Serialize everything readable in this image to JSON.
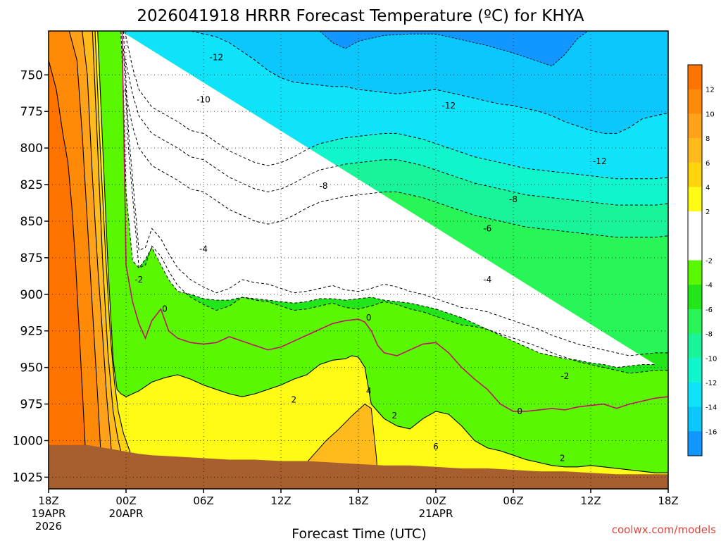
{
  "chart_data": {
    "type": "heatmap",
    "title": "2026041918 HRRR Forecast Temperature (ºC) for KHYA",
    "xlabel": "Forecast Time (UTC)",
    "ylabel": "",
    "y_axis": {
      "label": "",
      "range": [
        1033,
        720
      ],
      "ticks": [
        750,
        775,
        800,
        825,
        850,
        875,
        900,
        925,
        950,
        975,
        1000,
        1025
      ]
    },
    "x_axis": {
      "range_hours": [
        0,
        48
      ],
      "ticks": [
        {
          "hour": 0,
          "label": "18Z",
          "date": "19APR",
          "year": "2026"
        },
        {
          "hour": 6,
          "label": "00Z",
          "date": "20APR"
        },
        {
          "hour": 12,
          "label": "06Z"
        },
        {
          "hour": 18,
          "label": "12Z"
        },
        {
          "hour": 24,
          "label": "18Z"
        },
        {
          "hour": 30,
          "label": "00Z",
          "date": "21APR"
        },
        {
          "hour": 36,
          "label": "06Z"
        },
        {
          "hour": 42,
          "label": "12Z"
        },
        {
          "hour": 48,
          "label": "18Z"
        }
      ]
    },
    "grid": true,
    "colorbar": {
      "placement": "right",
      "levels": [
        {
          "value": "12",
          "color": "#ff7400"
        },
        {
          "value": "10",
          "color": "#ff8a08"
        },
        {
          "value": "8",
          "color": "#ffa21a"
        },
        {
          "value": "6",
          "color": "#ffba1c"
        },
        {
          "value": "4",
          "color": "#ffd40c"
        },
        {
          "value": "2",
          "color": "#fffb14"
        },
        {
          "value": "",
          "color": "#ffffff"
        },
        {
          "value": "-2",
          "color": "#ffffff"
        },
        {
          "value": "-4",
          "color": "#5af800"
        },
        {
          "value": "-6",
          "color": "#22e619"
        },
        {
          "value": "-8",
          "color": "#27f558"
        },
        {
          "value": "-10",
          "color": "#19f49a"
        },
        {
          "value": "-12",
          "color": "#11f5cc"
        },
        {
          "value": "-14",
          "color": "#0fe3fa"
        },
        {
          "value": "-16",
          "color": "#0bc7fb"
        },
        {
          "value": "",
          "color": "#1296ff"
        }
      ]
    },
    "contour_labels": [
      {
        "text": "-12",
        "hour": 13.0,
        "p": 738
      },
      {
        "text": "-10",
        "hour": 12.0,
        "p": 767
      },
      {
        "text": "-12",
        "hour": 31.0,
        "p": 771
      },
      {
        "text": "-12",
        "hour": 42.7,
        "p": 809
      },
      {
        "text": "-8",
        "hour": 21.3,
        "p": 826
      },
      {
        "text": "-8",
        "hour": 36.0,
        "p": 835
      },
      {
        "text": "-6",
        "hour": 34.0,
        "p": 855
      },
      {
        "text": "-4",
        "hour": 12.0,
        "p": 869
      },
      {
        "text": "-4",
        "hour": 34.0,
        "p": 890
      },
      {
        "text": "-2",
        "hour": 7.0,
        "p": 890
      },
      {
        "text": "0",
        "hour": 9.0,
        "p": 910
      },
      {
        "text": "0",
        "hour": 24.8,
        "p": 916
      },
      {
        "text": "-2",
        "hour": 40.0,
        "p": 956
      },
      {
        "text": "0",
        "hour": 36.5,
        "p": 980
      },
      {
        "text": "2",
        "hour": 19.0,
        "p": 972
      },
      {
        "text": "4",
        "hour": 24.8,
        "p": 966
      },
      {
        "text": "2",
        "hour": 26.8,
        "p": 983
      },
      {
        "text": "2",
        "hour": 39.8,
        "p": 1012
      },
      {
        "text": "6",
        "hour": 30.0,
        "p": 1004
      }
    ],
    "fields": {
      "cold_top": {
        "color": "#1296ff",
        "hours": [
          21,
          22,
          23,
          24,
          26,
          28,
          30,
          32,
          34,
          36,
          38,
          39,
          40,
          41,
          41.8
        ],
        "p": [
          720,
          728,
          732,
          727,
          723,
          722,
          722,
          726,
          730,
          735,
          741,
          744,
          736,
          725,
          720
        ]
      },
      "le_m14_x": [
        6.1,
        7,
        8,
        9,
        10,
        11,
        12,
        13,
        14,
        15,
        16,
        17,
        18,
        19,
        20,
        21,
        22,
        23,
        24,
        25,
        26,
        27,
        28,
        29,
        30,
        31,
        32,
        33,
        34,
        35,
        36,
        37,
        38,
        39,
        40,
        41,
        42,
        43,
        44,
        45,
        46,
        47,
        48
      ],
      "le_m14_p": [
        720,
        720,
        720,
        720,
        720,
        720,
        722,
        724,
        728,
        734,
        740,
        747,
        752,
        755,
        756,
        757,
        758,
        758,
        760,
        761,
        762,
        763,
        762,
        761,
        760,
        762,
        764,
        766,
        768,
        770,
        771,
        773,
        775,
        778,
        782,
        785,
        788,
        790,
        790,
        786,
        780,
        778,
        776
      ],
      "le_m10_x": [
        5.9,
        6.5,
        7,
        8,
        9,
        10,
        11,
        12,
        13,
        14,
        15,
        16,
        17,
        18,
        19,
        20,
        21,
        22,
        23,
        24,
        25,
        26,
        27,
        28,
        29,
        30,
        31,
        32,
        33,
        34,
        35,
        36,
        37,
        38,
        39,
        40,
        41,
        42,
        43,
        44,
        45,
        46,
        47,
        48
      ],
      "le_m10_p": [
        720,
        745,
        760,
        772,
        777,
        782,
        788,
        790,
        796,
        802,
        806,
        810,
        812,
        810,
        806,
        801,
        797,
        795,
        793,
        792,
        791,
        790,
        790,
        792,
        794,
        797,
        800,
        803,
        806,
        808,
        810,
        812,
        814,
        815,
        816,
        817,
        818,
        819,
        820,
        821,
        821,
        821,
        821,
        820
      ],
      "le_m4_x": [
        5.8,
        6.2,
        6.6,
        7,
        7.5,
        8,
        8.7,
        9.3,
        10,
        11,
        12,
        13,
        14,
        15,
        16,
        17,
        18,
        19,
        20,
        21,
        22,
        23,
        24,
        25,
        26,
        27,
        28,
        29,
        30,
        31,
        32,
        33,
        34,
        35,
        36,
        37,
        38,
        39,
        40,
        41,
        42,
        43,
        44,
        45,
        46,
        47,
        48
      ],
      "le_m4_p": [
        720,
        790,
        830,
        870,
        868,
        855,
        862,
        872,
        882,
        890,
        895,
        899,
        896,
        890,
        892,
        893,
        896,
        899,
        898,
        896,
        894,
        897,
        898,
        896,
        893,
        895,
        898,
        900,
        903,
        906,
        909,
        910,
        912,
        915,
        918,
        921,
        924,
        928,
        931,
        934,
        936,
        938,
        940,
        942,
        941,
        940,
        940
      ],
      "le_m2_x": [
        5.6,
        5.8,
        6,
        6.5,
        7,
        7.5,
        8,
        8.7,
        9.3,
        10,
        11,
        12,
        13,
        14,
        15,
        16,
        17,
        18,
        19,
        20,
        21,
        22,
        23,
        24,
        25,
        26,
        27,
        28,
        29,
        30,
        31,
        32,
        33,
        34,
        35,
        36,
        37,
        38,
        39,
        40,
        41,
        42,
        43,
        44,
        45,
        46,
        47,
        48
      ],
      "le_m2_p": [
        720,
        760,
        830,
        877,
        882,
        876,
        868,
        880,
        890,
        898,
        900,
        903,
        904,
        904,
        902,
        903,
        904,
        905,
        906,
        905,
        903,
        903,
        904,
        903,
        902,
        904,
        905,
        906,
        908,
        910,
        913,
        916,
        920,
        924,
        928,
        932,
        936,
        940,
        942,
        944,
        945,
        947,
        948,
        950,
        949,
        948,
        948
      ],
      "ge_2_x": [
        0,
        1,
        2,
        3,
        3.8,
        4.2,
        4.6,
        5,
        5.3,
        5.6,
        6,
        6.5,
        7,
        8,
        9,
        10,
        11,
        12,
        13,
        14,
        15,
        16,
        17,
        18,
        19,
        20,
        21,
        22,
        23,
        23.5,
        24,
        24.5,
        25,
        26,
        27,
        28,
        29,
        30,
        31,
        32,
        33,
        34,
        35,
        36,
        37,
        38,
        39,
        40,
        41,
        42,
        43,
        44,
        45,
        46,
        47,
        48
      ],
      "ge_2_p": [
        720,
        720,
        720,
        720,
        720,
        800,
        880,
        945,
        965,
        968,
        970,
        968,
        966,
        960,
        957,
        955,
        958,
        962,
        965,
        968,
        970,
        968,
        965,
        962,
        958,
        955,
        948,
        945,
        944,
        942,
        943,
        950,
        975,
        985,
        990,
        992,
        985,
        980,
        982,
        990,
        1000,
        1005,
        1007,
        1010,
        1013,
        1015,
        1017,
        1018,
        1018,
        1017,
        1018,
        1019,
        1020,
        1021,
        1022,
        1022
      ],
      "ge_4_x": [
        0,
        1,
        2,
        3,
        3.6,
        4,
        4.4,
        4.8,
        5.1,
        5.4,
        5.8,
        6.4,
        7,
        7.5,
        8
      ],
      "ge_4_p": [
        720,
        720,
        720,
        720,
        720,
        800,
        870,
        930,
        960,
        980,
        995,
        1010,
        1020,
        1027,
        1033
      ],
      "ge_6_x": [
        0,
        1,
        2,
        3,
        3.4,
        3.8,
        4.2,
        4.6,
        5,
        5.4,
        5.8,
        6.2
      ],
      "ge_6_p": [
        720,
        720,
        720,
        720,
        720,
        800,
        880,
        940,
        980,
        1000,
        1015,
        1033
      ],
      "ge_8_x": [
        0,
        1,
        2,
        2.6,
        3,
        3.4,
        3.8,
        4.2,
        4.5,
        4.8,
        5.1
      ],
      "ge_8_p": [
        720,
        720,
        720,
        720,
        750,
        820,
        880,
        930,
        970,
        1000,
        1033
      ],
      "ge_10_x": [
        0,
        0.8,
        1.6,
        2.2,
        2.6,
        3,
        3.4,
        3.8,
        4.2
      ],
      "ge_10_p": [
        720,
        720,
        720,
        740,
        790,
        850,
        910,
        970,
        1033
      ],
      "ge_12_x": [
        0,
        0.6,
        1.1,
        1.5,
        1.8,
        2.1,
        2.4,
        2.7,
        3
      ],
      "ge_12_p": [
        740,
        760,
        790,
        810,
        840,
        880,
        930,
        980,
        1033
      ],
      "warm_pocket": {
        "color": "#ffba1c",
        "hours": [
          19.5,
          20.5,
          21.5,
          22.5,
          23.5,
          24.5,
          25,
          25.2,
          25.4,
          25.5
        ],
        "p": [
          1020,
          1010,
          1000,
          992,
          983,
          975,
          978,
          995,
          1012,
          1026
        ]
      },
      "surface_hours": [
        0,
        3,
        5,
        7,
        8,
        10,
        12,
        14,
        16,
        18,
        20,
        22,
        24,
        26,
        28,
        30,
        32,
        34,
        36,
        38,
        40,
        42,
        44,
        46,
        48
      ],
      "surface_p": [
        1003,
        1003,
        1006,
        1009,
        1010,
        1011,
        1012,
        1013,
        1013,
        1014,
        1014,
        1015,
        1016,
        1017,
        1017,
        1018,
        1019,
        1019,
        1020,
        1021,
        1021,
        1022,
        1023,
        1023,
        1023
      ],
      "surface_color": "#a85f2f"
    }
  },
  "credit": "coolwx.com/models"
}
